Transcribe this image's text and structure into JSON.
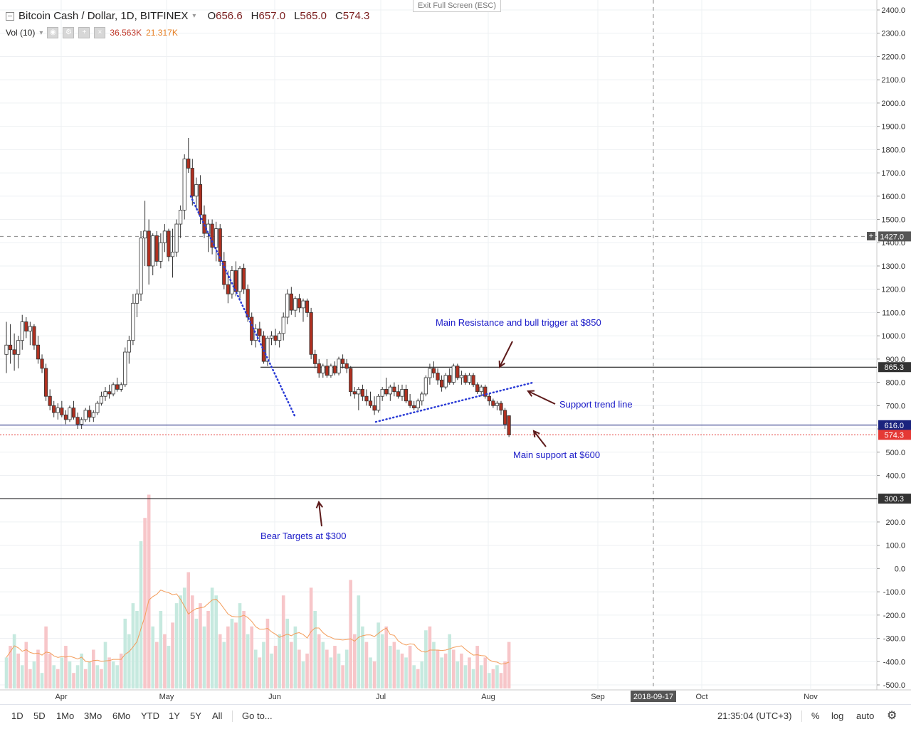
{
  "header": {
    "symbol": "Bitcoin Cash / Dollar, 1D, BITFINEX",
    "open_label": "O",
    "open": "656.6",
    "high_label": "H",
    "high": "657.0",
    "low_label": "L",
    "low": "565.0",
    "close_label": "C",
    "close": "574.3",
    "fullscreen": "Exit Full Screen (ESC)"
  },
  "volume": {
    "label": "Vol (10)",
    "value1": "36.563K",
    "value2": "21.317K"
  },
  "annotations": {
    "resistance": "Main Resistance and bull trigger at $850",
    "trendline": "Support trend line",
    "support": "Main support at $600",
    "bear": "Bear Targets at $300"
  },
  "toolbar": {
    "r1d": "1D",
    "r5d": "5D",
    "r1mo": "1Mo",
    "r3mo": "3Mo",
    "r6mo": "6Mo",
    "rytd": "YTD",
    "r1y": "1Y",
    "r5y": "5Y",
    "rall": "All",
    "goto": "Go to...",
    "time": "21:35:04 (UTC+3)",
    "pct": "%",
    "log": "log",
    "auto": "auto"
  },
  "colors": {
    "up": "#26a69a",
    "down": "#b03020",
    "vol_up": "#c6e9df",
    "vol_down": "#f7c6c9",
    "level": "#000000",
    "support_line": "#1a237e",
    "annotation": "#1a1ac8",
    "arrow": "#5d1a1a"
  },
  "chart_data": {
    "type": "candlestick",
    "ylim": [
      -520,
      2430
    ],
    "y_ticks": [
      2400,
      2300,
      2200,
      2100,
      2000,
      1900,
      1800,
      1700,
      1600,
      1500,
      1400,
      1300,
      1200,
      1100,
      1000,
      900,
      800,
      700,
      600,
      500,
      400,
      300,
      200,
      100,
      0,
      -100,
      -200,
      -300,
      -400,
      -500
    ],
    "x_ticks": [
      "Apr",
      "May",
      "Jun",
      "Jul",
      "Aug",
      "Sep",
      "2018-09-17",
      "Oct",
      "Nov"
    ],
    "price_labels": [
      {
        "label": "1427.0",
        "value": 1427,
        "bg": "#555555"
      },
      {
        "label": "865.3",
        "value": 865.3,
        "bg": "#333333"
      },
      {
        "label": "616.0",
        "value": 616,
        "bg": "#1a237e"
      },
      {
        "label": "574.3",
        "value": 574.3,
        "bg": "#e53935"
      },
      {
        "label": "300.3",
        "value": 300.3,
        "bg": "#333333"
      }
    ],
    "horizontal_levels": [
      865.3,
      616,
      300.3
    ],
    "candles": [
      [
        0,
        920,
        1060,
        840,
        960
      ],
      [
        1,
        960,
        1050,
        880,
        940
      ],
      [
        2,
        940,
        1010,
        850,
        920
      ],
      [
        3,
        920,
        1000,
        860,
        980
      ],
      [
        4,
        980,
        1090,
        940,
        1060
      ],
      [
        5,
        1060,
        1080,
        990,
        1020
      ],
      [
        6,
        1020,
        1060,
        960,
        1040
      ],
      [
        7,
        1040,
        1050,
        940,
        960
      ],
      [
        8,
        960,
        1000,
        880,
        900
      ],
      [
        9,
        900,
        920,
        840,
        860
      ],
      [
        10,
        860,
        880,
        720,
        740
      ],
      [
        11,
        740,
        770,
        680,
        700
      ],
      [
        12,
        700,
        720,
        650,
        670
      ],
      [
        13,
        670,
        710,
        640,
        690
      ],
      [
        14,
        690,
        720,
        650,
        660
      ],
      [
        15,
        660,
        680,
        620,
        640
      ],
      [
        16,
        640,
        700,
        630,
        690
      ],
      [
        17,
        690,
        720,
        640,
        650
      ],
      [
        18,
        650,
        670,
        600,
        620
      ],
      [
        19,
        620,
        650,
        600,
        640
      ],
      [
        20,
        640,
        690,
        630,
        680
      ],
      [
        21,
        680,
        700,
        630,
        650
      ],
      [
        22,
        650,
        680,
        630,
        670
      ],
      [
        23,
        670,
        720,
        660,
        710
      ],
      [
        24,
        710,
        760,
        700,
        740
      ],
      [
        25,
        740,
        780,
        720,
        760
      ],
      [
        26,
        760,
        790,
        730,
        750
      ],
      [
        27,
        750,
        800,
        740,
        790
      ],
      [
        28,
        790,
        820,
        760,
        770
      ],
      [
        29,
        770,
        800,
        760,
        790
      ],
      [
        30,
        790,
        950,
        780,
        930
      ],
      [
        31,
        930,
        1000,
        880,
        980
      ],
      [
        32,
        980,
        1180,
        960,
        1140
      ],
      [
        33,
        1140,
        1200,
        1080,
        1180
      ],
      [
        34,
        1180,
        1450,
        1150,
        1420
      ],
      [
        35,
        1420,
        1580,
        1300,
        1450
      ],
      [
        36,
        1450,
        1500,
        1220,
        1300
      ],
      [
        37,
        1300,
        1440,
        1260,
        1430
      ],
      [
        38,
        1430,
        1450,
        1300,
        1320
      ],
      [
        39,
        1320,
        1440,
        1290,
        1400
      ],
      [
        40,
        1400,
        1480,
        1360,
        1450
      ],
      [
        41,
        1450,
        1460,
        1320,
        1340
      ],
      [
        42,
        1340,
        1460,
        1250,
        1360
      ],
      [
        43,
        1360,
        1500,
        1340,
        1480
      ],
      [
        44,
        1480,
        1560,
        1420,
        1540
      ],
      [
        45,
        1540,
        1780,
        1500,
        1760
      ],
      [
        46,
        1760,
        1850,
        1700,
        1720
      ],
      [
        47,
        1720,
        1760,
        1560,
        1600
      ],
      [
        48,
        1600,
        1680,
        1540,
        1650
      ],
      [
        49,
        1650,
        1690,
        1480,
        1520
      ],
      [
        50,
        1520,
        1560,
        1420,
        1440
      ],
      [
        51,
        1440,
        1500,
        1360,
        1480
      ],
      [
        52,
        1480,
        1500,
        1350,
        1380
      ],
      [
        53,
        1380,
        1490,
        1320,
        1460
      ],
      [
        54,
        1460,
        1480,
        1300,
        1320
      ],
      [
        55,
        1320,
        1360,
        1200,
        1220
      ],
      [
        56,
        1220,
        1280,
        1140,
        1180
      ],
      [
        57,
        1180,
        1300,
        1160,
        1280
      ],
      [
        58,
        1280,
        1320,
        1170,
        1190
      ],
      [
        59,
        1190,
        1300,
        1160,
        1290
      ],
      [
        60,
        1290,
        1310,
        1180,
        1200
      ],
      [
        61,
        1200,
        1220,
        1060,
        1080
      ],
      [
        62,
        1080,
        1100,
        960,
        980
      ],
      [
        63,
        980,
        1050,
        950,
        1030
      ],
      [
        64,
        1030,
        1060,
        980,
        1000
      ],
      [
        65,
        1000,
        1020,
        880,
        890
      ],
      [
        66,
        890,
        1000,
        870,
        990
      ],
      [
        67,
        990,
        1020,
        960,
        1000
      ],
      [
        68,
        1000,
        1030,
        960,
        980
      ],
      [
        69,
        980,
        1020,
        950,
        1010
      ],
      [
        70,
        1010,
        1100,
        980,
        1080
      ],
      [
        71,
        1080,
        1200,
        1050,
        1180
      ],
      [
        72,
        1180,
        1210,
        1090,
        1110
      ],
      [
        73,
        1110,
        1170,
        1080,
        1160
      ],
      [
        74,
        1160,
        1180,
        1100,
        1120
      ],
      [
        75,
        1120,
        1160,
        1060,
        1150
      ],
      [
        76,
        1150,
        1160,
        1080,
        1100
      ],
      [
        77,
        1100,
        1120,
        900,
        920
      ],
      [
        78,
        920,
        940,
        860,
        880
      ],
      [
        79,
        880,
        900,
        820,
        840
      ],
      [
        80,
        840,
        880,
        820,
        870
      ],
      [
        81,
        870,
        900,
        820,
        830
      ],
      [
        82,
        830,
        880,
        820,
        870
      ],
      [
        83,
        870,
        890,
        830,
        840
      ],
      [
        84,
        840,
        910,
        830,
        900
      ],
      [
        85,
        900,
        920,
        860,
        880
      ],
      [
        86,
        880,
        900,
        840,
        860
      ],
      [
        87,
        860,
        870,
        740,
        760
      ],
      [
        88,
        760,
        780,
        730,
        750
      ],
      [
        89,
        750,
        780,
        680,
        770
      ],
      [
        90,
        770,
        790,
        720,
        740
      ],
      [
        91,
        740,
        770,
        700,
        720
      ],
      [
        92,
        720,
        760,
        690,
        700
      ],
      [
        93,
        700,
        740,
        660,
        680
      ],
      [
        94,
        680,
        750,
        670,
        740
      ],
      [
        95,
        740,
        780,
        720,
        770
      ],
      [
        96,
        770,
        820,
        740,
        750
      ],
      [
        97,
        750,
        790,
        720,
        780
      ],
      [
        98,
        780,
        800,
        740,
        760
      ],
      [
        99,
        760,
        790,
        730,
        740
      ],
      [
        100,
        740,
        790,
        720,
        770
      ],
      [
        101,
        770,
        790,
        710,
        720
      ],
      [
        102,
        720,
        750,
        690,
        700
      ],
      [
        103,
        700,
        720,
        680,
        690
      ],
      [
        104,
        690,
        730,
        680,
        720
      ],
      [
        105,
        720,
        760,
        700,
        750
      ],
      [
        106,
        750,
        830,
        740,
        820
      ],
      [
        107,
        820,
        880,
        790,
        860
      ],
      [
        108,
        860,
        890,
        820,
        840
      ],
      [
        109,
        840,
        860,
        790,
        810
      ],
      [
        110,
        810,
        830,
        760,
        780
      ],
      [
        111,
        780,
        840,
        770,
        830
      ],
      [
        112,
        830,
        860,
        790,
        800
      ],
      [
        113,
        800,
        880,
        790,
        870
      ],
      [
        114,
        870,
        880,
        810,
        820
      ],
      [
        115,
        820,
        850,
        790,
        830
      ],
      [
        116,
        830,
        840,
        790,
        800
      ],
      [
        117,
        800,
        840,
        790,
        830
      ],
      [
        118,
        830,
        840,
        780,
        790
      ],
      [
        119,
        790,
        800,
        750,
        760
      ],
      [
        120,
        760,
        790,
        740,
        780
      ],
      [
        121,
        780,
        790,
        730,
        740
      ],
      [
        122,
        740,
        750,
        700,
        720
      ],
      [
        123,
        720,
        730,
        690,
        700
      ],
      [
        124,
        700,
        720,
        680,
        710
      ],
      [
        125,
        710,
        720,
        660,
        680
      ],
      [
        126,
        680,
        690,
        600,
        620
      ],
      [
        127,
        656.6,
        657,
        565,
        574.3
      ]
    ],
    "volume": [
      [
        0,
        40,
        1
      ],
      [
        1,
        55,
        0
      ],
      [
        2,
        70,
        1
      ],
      [
        3,
        45,
        0
      ],
      [
        4,
        30,
        1
      ],
      [
        5,
        60,
        0
      ],
      [
        6,
        25,
        0
      ],
      [
        7,
        35,
        1
      ],
      [
        8,
        50,
        0
      ],
      [
        9,
        20,
        1
      ],
      [
        10,
        80,
        0
      ],
      [
        11,
        45,
        0
      ],
      [
        12,
        30,
        1
      ],
      [
        13,
        25,
        0
      ],
      [
        14,
        40,
        1
      ],
      [
        15,
        55,
        0
      ],
      [
        16,
        35,
        1
      ],
      [
        17,
        20,
        0
      ],
      [
        18,
        30,
        1
      ],
      [
        19,
        45,
        1
      ],
      [
        20,
        25,
        0
      ],
      [
        21,
        35,
        1
      ],
      [
        22,
        50,
        0
      ],
      [
        23,
        30,
        1
      ],
      [
        24,
        25,
        0
      ],
      [
        25,
        60,
        1
      ],
      [
        26,
        40,
        0
      ],
      [
        27,
        35,
        1
      ],
      [
        28,
        30,
        1
      ],
      [
        29,
        45,
        0
      ],
      [
        30,
        90,
        1
      ],
      [
        31,
        70,
        1
      ],
      [
        32,
        110,
        1
      ],
      [
        33,
        100,
        1
      ],
      [
        34,
        190,
        1
      ],
      [
        35,
        220,
        0
      ],
      [
        36,
        250,
        0
      ],
      [
        37,
        80,
        1
      ],
      [
        38,
        60,
        0
      ],
      [
        39,
        100,
        1
      ],
      [
        40,
        70,
        0
      ],
      [
        41,
        55,
        1
      ],
      [
        42,
        85,
        0
      ],
      [
        43,
        110,
        1
      ],
      [
        44,
        120,
        1
      ],
      [
        45,
        130,
        1
      ],
      [
        46,
        150,
        0
      ],
      [
        47,
        120,
        0
      ],
      [
        48,
        90,
        1
      ],
      [
        49,
        110,
        0
      ],
      [
        50,
        80,
        1
      ],
      [
        51,
        100,
        0
      ],
      [
        52,
        130,
        1
      ],
      [
        53,
        120,
        1
      ],
      [
        54,
        70,
        0
      ],
      [
        55,
        60,
        1
      ],
      [
        56,
        80,
        0
      ],
      [
        57,
        90,
        1
      ],
      [
        58,
        85,
        0
      ],
      [
        59,
        110,
        1
      ],
      [
        60,
        100,
        0
      ],
      [
        61,
        70,
        1
      ],
      [
        62,
        80,
        0
      ],
      [
        63,
        50,
        1
      ],
      [
        64,
        40,
        0
      ],
      [
        65,
        60,
        1
      ],
      [
        66,
        90,
        0
      ],
      [
        67,
        45,
        1
      ],
      [
        68,
        55,
        0
      ],
      [
        69,
        70,
        1
      ],
      [
        70,
        120,
        0
      ],
      [
        71,
        90,
        1
      ],
      [
        72,
        60,
        0
      ],
      [
        73,
        80,
        1
      ],
      [
        74,
        50,
        0
      ],
      [
        75,
        35,
        1
      ],
      [
        76,
        45,
        0
      ],
      [
        77,
        130,
        0
      ],
      [
        78,
        100,
        1
      ],
      [
        79,
        70,
        0
      ],
      [
        80,
        60,
        1
      ],
      [
        81,
        50,
        0
      ],
      [
        82,
        40,
        1
      ],
      [
        83,
        55,
        0
      ],
      [
        84,
        45,
        1
      ],
      [
        85,
        30,
        0
      ],
      [
        86,
        50,
        1
      ],
      [
        87,
        140,
        0
      ],
      [
        88,
        70,
        0
      ],
      [
        89,
        120,
        1
      ],
      [
        90,
        80,
        1
      ],
      [
        91,
        60,
        0
      ],
      [
        92,
        40,
        1
      ],
      [
        93,
        35,
        0
      ],
      [
        94,
        85,
        1
      ],
      [
        95,
        70,
        1
      ],
      [
        96,
        80,
        0
      ],
      [
        97,
        55,
        1
      ],
      [
        98,
        60,
        0
      ],
      [
        99,
        50,
        1
      ],
      [
        100,
        45,
        0
      ],
      [
        101,
        40,
        1
      ],
      [
        102,
        55,
        0
      ],
      [
        103,
        30,
        1
      ],
      [
        104,
        25,
        0
      ],
      [
        105,
        35,
        1
      ],
      [
        106,
        75,
        1
      ],
      [
        107,
        80,
        0
      ],
      [
        108,
        60,
        1
      ],
      [
        109,
        50,
        0
      ],
      [
        110,
        40,
        1
      ],
      [
        111,
        45,
        0
      ],
      [
        112,
        70,
        1
      ],
      [
        113,
        50,
        0
      ],
      [
        114,
        35,
        1
      ],
      [
        115,
        45,
        0
      ],
      [
        116,
        30,
        1
      ],
      [
        117,
        40,
        0
      ],
      [
        118,
        25,
        1
      ],
      [
        119,
        55,
        0
      ],
      [
        120,
        30,
        1
      ],
      [
        121,
        40,
        0
      ],
      [
        122,
        20,
        1
      ],
      [
        123,
        25,
        0
      ],
      [
        124,
        30,
        1
      ],
      [
        125,
        20,
        0
      ],
      [
        126,
        35,
        0
      ],
      [
        127,
        60,
        0
      ]
    ]
  }
}
